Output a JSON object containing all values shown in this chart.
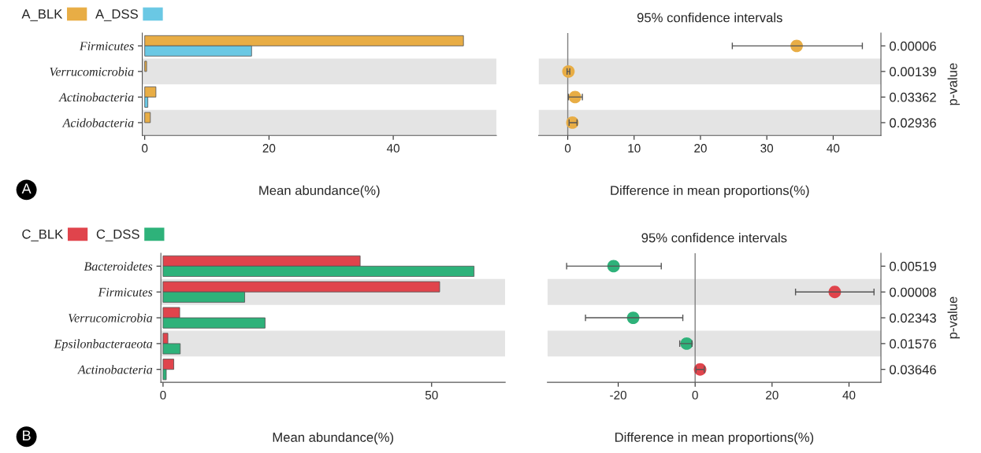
{
  "chart_data": [
    {
      "type": "bar",
      "orientation": "horizontal",
      "xlabel": "Mean abundance(%)",
      "categories": [
        "Firmicutes",
        "Verrucomicrobia",
        "Actinobacteria",
        "Acidobacteria"
      ],
      "series": [
        {
          "name": "A_BLK",
          "color": "#e8ad45",
          "values": [
            51.3,
            0.3,
            1.8,
            0.9
          ]
        },
        {
          "name": "A_DSS",
          "color": "#6ac8e4",
          "values": [
            17.2,
            null,
            0.5,
            null
          ]
        }
      ],
      "xlim": [
        -0.4,
        56.6
      ],
      "xticks": [
        0,
        20,
        40
      ],
      "legend": "top left",
      "bands": [
        {
          "axis": "y",
          "from": "Verrucomicrobia",
          "to": "Verrucomicrobia",
          "color": "#e4e4e4"
        },
        {
          "axis": "y",
          "from": "Acidobacteria",
          "to": "Acidobacteria",
          "color": "#e4e4e4"
        }
      ],
      "annotations": [
        "A"
      ]
    },
    {
      "type": "scatter",
      "orientation": "horizontal",
      "title": "95% confidence intervals",
      "xlabel": "Difference in mean proportions(%)",
      "ylabel": "p-value",
      "categories": [
        "0.00006",
        "0.00139",
        "0.03362",
        "0.02936"
      ],
      "values": [
        34.5,
        0.1,
        1.1,
        0.7
      ],
      "colors": [
        "#e8ad45",
        "#e8ad45",
        "#e8ad45",
        "#e8ad45"
      ],
      "errors": [
        [
          24.8,
          44.4
        ],
        [
          -0.1,
          0.3
        ],
        [
          0.1,
          2.2
        ],
        [
          0.2,
          1.4
        ]
      ],
      "xlim": [
        -4.4,
        47.2
      ],
      "xticks": [
        0,
        10,
        20,
        30,
        40
      ],
      "marker": "circle",
      "ref_lines": [
        {
          "axis": "x",
          "value": 0,
          "color": "#808080"
        }
      ],
      "bands": [
        {
          "axis": "y",
          "from": "0.00139",
          "to": "0.00139",
          "color": "#e4e4e4"
        },
        {
          "axis": "y",
          "from": "0.02936",
          "to": "0.02936",
          "color": "#e4e4e4"
        }
      ]
    },
    {
      "type": "bar",
      "orientation": "horizontal",
      "xlabel": "Mean abundance(%)",
      "categories": [
        "Bacteroidetes",
        "Firmicutes",
        "Verrucomicrobia",
        "Epsilonbacteraeota",
        "Actinobacteria"
      ],
      "series": [
        {
          "name": "C_BLK",
          "color": "#e0444c",
          "values": [
            36.7,
            51.5,
            3.1,
            0.9,
            2.0
          ]
        },
        {
          "name": "C_DSS",
          "color": "#2eb27a",
          "values": [
            57.9,
            15.2,
            19.0,
            3.2,
            0.6
          ]
        }
      ],
      "xlim": [
        -0.4,
        63.7
      ],
      "xticks": [
        0,
        50
      ],
      "legend": "top left",
      "bands": [
        {
          "axis": "y",
          "from": "Firmicutes",
          "to": "Firmicutes",
          "color": "#e4e4e4"
        },
        {
          "axis": "y",
          "from": "Epsilonbacteraeota",
          "to": "Epsilonbacteraeota",
          "color": "#e4e4e4"
        }
      ],
      "annotations": [
        "B"
      ]
    },
    {
      "type": "scatter",
      "orientation": "horizontal",
      "title": "95% confidence intervals",
      "xlabel": "Difference in mean proportions(%)",
      "ylabel": "p-value",
      "categories": [
        "0.00519",
        "0.00008",
        "0.02343",
        "0.01576",
        "0.03646"
      ],
      "values": [
        -21.2,
        36.3,
        -16.1,
        -2.2,
        1.3
      ],
      "colors": [
        "#2eb27a",
        "#e0444c",
        "#2eb27a",
        "#2eb27a",
        "#e0444c"
      ],
      "errors": [
        [
          -33.4,
          -8.8
        ],
        [
          26.1,
          46.5
        ],
        [
          -28.5,
          -3.2
        ],
        [
          -4.0,
          -0.8
        ],
        [
          0.2,
          2.4
        ]
      ],
      "xlim": [
        -38.4,
        48.3
      ],
      "xticks": [
        {
          "value": -20,
          "label": "-20"
        },
        0,
        20,
        40
      ],
      "marker": "circle",
      "ref_lines": [
        {
          "axis": "x",
          "value": 0,
          "color": "#808080"
        }
      ],
      "bands": [
        {
          "axis": "y",
          "from": "0.00008",
          "to": "0.00008",
          "color": "#e4e4e4"
        },
        {
          "axis": "y",
          "from": "0.01576",
          "to": "0.01576",
          "color": "#e4e4e4"
        }
      ]
    }
  ]
}
